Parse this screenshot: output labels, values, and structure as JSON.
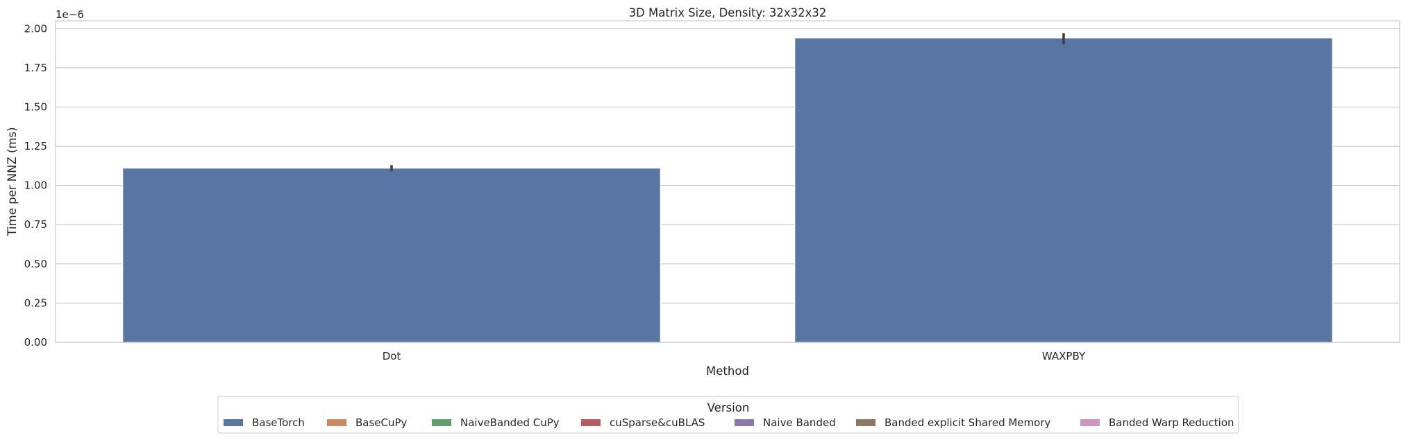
{
  "chart_data": {
    "type": "bar",
    "title": "3D Matrix Size, Density: 32x32x32",
    "xlabel": "Method",
    "ylabel": "Time per NNZ (ms)",
    "y_offset_label": "1e−6",
    "y_scale_factor": 1e-06,
    "categories": [
      "Dot",
      "WAXPBY"
    ],
    "ylim": [
      0,
      2.05
    ],
    "yticks": [
      "0.00",
      "0.25",
      "0.50",
      "0.75",
      "1.00",
      "1.25",
      "1.50",
      "1.75",
      "2.00"
    ],
    "ytick_values": [
      0,
      0.25,
      0.5,
      0.75,
      1.0,
      1.25,
      1.5,
      1.75,
      2.0
    ],
    "grid": true,
    "legend_title": "Version",
    "legend_placement": "bottom-center",
    "series": [
      {
        "name": "BaseTorch",
        "color": "#5975a4",
        "values": [
          1.11,
          1.94
        ],
        "error": [
          [
            1.09,
            1.13
          ],
          [
            1.9,
            1.97
          ]
        ]
      },
      {
        "name": "BaseCuPy",
        "color": "#cc8963",
        "values": [
          null,
          null
        ]
      },
      {
        "name": "NaiveBanded CuPy",
        "color": "#5f9e6e",
        "values": [
          null,
          null
        ]
      },
      {
        "name": "cuSparse&cuBLAS",
        "color": "#b55d60",
        "values": [
          null,
          null
        ]
      },
      {
        "name": "Naive Banded",
        "color": "#857aab",
        "values": [
          null,
          null
        ]
      },
      {
        "name": "Banded explicit Shared Memory",
        "color": "#8d7866",
        "values": [
          null,
          null
        ]
      },
      {
        "name": "Banded Warp Reduction",
        "color": "#d095bf",
        "values": [
          null,
          null
        ]
      }
    ]
  }
}
